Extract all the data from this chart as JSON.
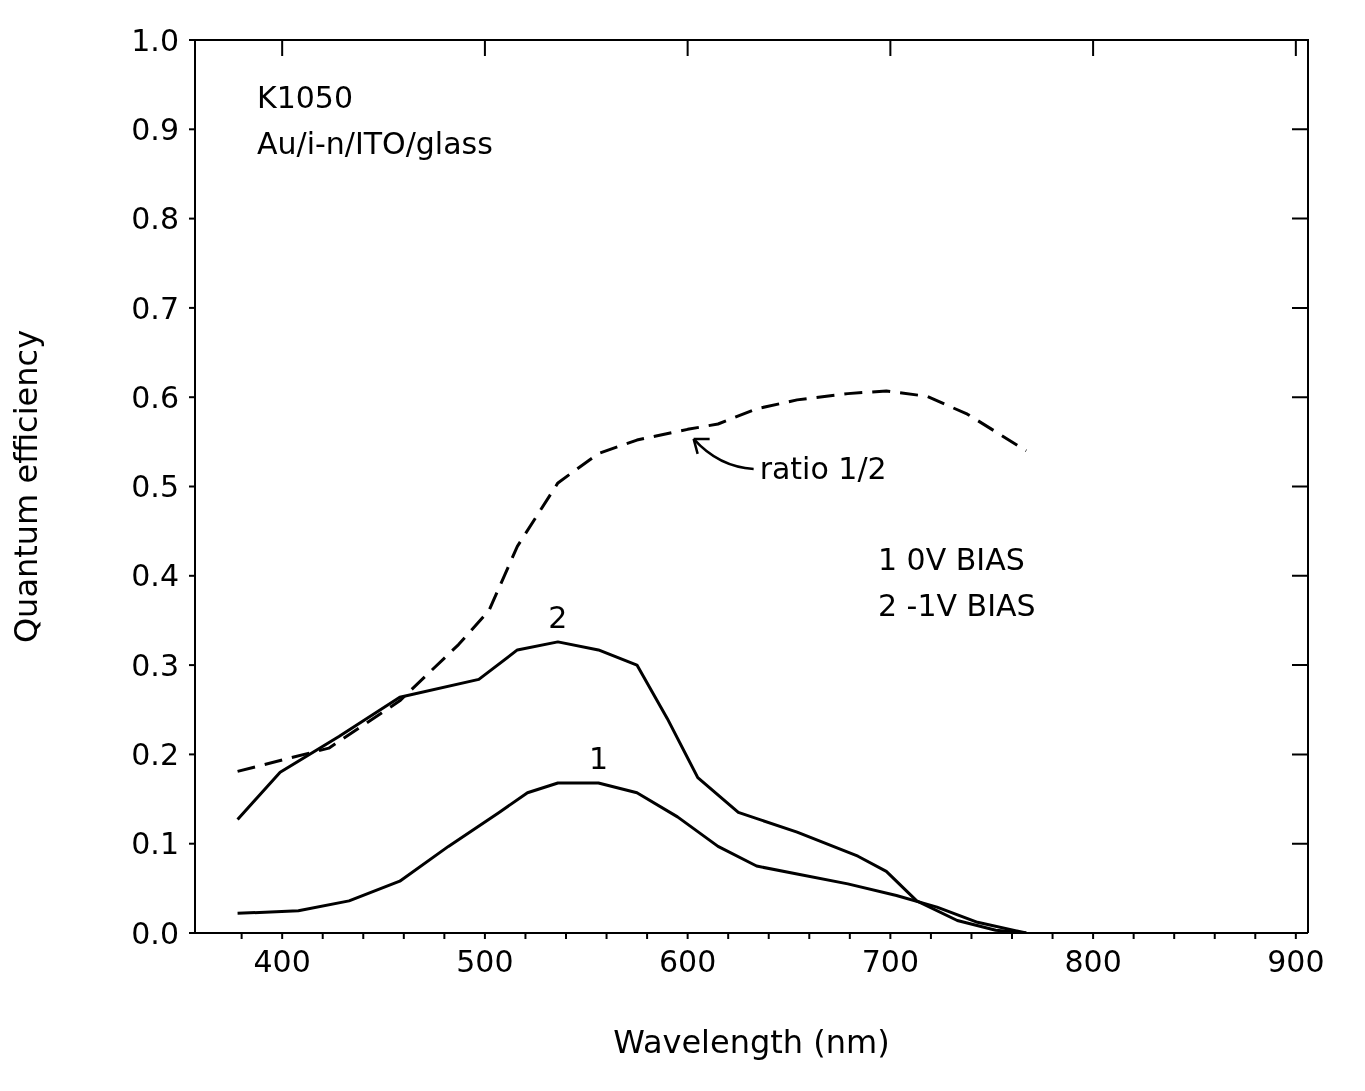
{
  "chart_data": {
    "type": "line",
    "xlabel": "Wavelength (nm)",
    "ylabel": "Quantum efficiency",
    "xlim": [
      357,
      906
    ],
    "ylim": [
      0,
      1
    ],
    "xticks": [
      {
        "value": 380,
        "label": null
      },
      400,
      {
        "value": 420,
        "label": null
      },
      {
        "value": 440,
        "label": null
      },
      {
        "value": 460,
        "label": null
      },
      {
        "value": 480,
        "label": null
      },
      500,
      {
        "value": 520,
        "label": null
      },
      {
        "value": 540,
        "label": null
      },
      {
        "value": 560,
        "label": null
      },
      {
        "value": 580,
        "label": null
      },
      600,
      {
        "value": 620,
        "label": null
      },
      {
        "value": 640,
        "label": null
      },
      {
        "value": 660,
        "label": null
      },
      {
        "value": 680,
        "label": null
      },
      700,
      {
        "value": 720,
        "label": null
      },
      {
        "value": 740,
        "label": null
      },
      {
        "value": 760,
        "label": null
      },
      {
        "value": 780,
        "label": null
      },
      800,
      {
        "value": 820,
        "label": null
      },
      {
        "value": 840,
        "label": null
      },
      {
        "value": 860,
        "label": null
      },
      {
        "value": 880,
        "label": null
      },
      900
    ],
    "yticks": [
      {
        "value": 0,
        "label": "0.0"
      },
      {
        "value": 0.1,
        "label": "0.1"
      },
      {
        "value": 0.2,
        "label": "0.2"
      },
      {
        "value": 0.3,
        "label": "0.3"
      },
      {
        "value": 0.4,
        "label": "0.4"
      },
      {
        "value": 0.5,
        "label": "0.5"
      },
      {
        "value": 0.6,
        "label": "0.6"
      },
      {
        "value": 0.7,
        "label": "0.7"
      },
      {
        "value": 0.8,
        "label": "0.8"
      },
      {
        "value": 0.9,
        "label": "0.9"
      },
      {
        "value": 1,
        "label": "1.0"
      }
    ],
    "series": [
      {
        "color": "#000000",
        "line_style": "solid",
        "x": [
          378,
          408,
          433,
          458,
          482,
          507,
          521,
          536,
          556,
          575,
          595,
          615,
          634,
          654,
          679,
          703,
          723,
          743,
          767
        ],
        "values": [
          0.022,
          0.025,
          0.036,
          0.058,
          0.097,
          0.135,
          0.157,
          0.168,
          0.168,
          0.157,
          0.13,
          0.097,
          0.075,
          0.066,
          0.055,
          0.042,
          0.029,
          0.012,
          0
        ]
      },
      {
        "color": "#000000",
        "line_style": "solid",
        "x": [
          378,
          399,
          428,
          458,
          497,
          516,
          536,
          556,
          575,
          590,
          605,
          625,
          654,
          684,
          698,
          713,
          733,
          752,
          767
        ],
        "values": [
          0.127,
          0.18,
          0.22,
          0.264,
          0.284,
          0.317,
          0.326,
          0.317,
          0.3,
          0.24,
          0.174,
          0.135,
          0.113,
          0.086,
          0.069,
          0.036,
          0.014,
          0.003,
          0
        ]
      },
      {
        "color": "#000000",
        "line_style": "dashed",
        "x": [
          378,
          423,
          458,
          487,
          502,
          516,
          536,
          556,
          575,
          600,
          615,
          634,
          654,
          679,
          698,
          718,
          738,
          767
        ],
        "values": [
          0.181,
          0.207,
          0.26,
          0.323,
          0.361,
          0.433,
          0.504,
          0.537,
          0.552,
          0.564,
          0.57,
          0.587,
          0.597,
          0.604,
          0.607,
          0.601,
          0.581,
          0.54
        ]
      }
    ],
    "annotations": [
      "K1050",
      "Au/i-n/ITO/glass",
      {
        "text": "ratio 1/2",
        "x": 600,
        "y": 0.56
      },
      {
        "text": "1",
        "x": 556,
        "y": 0.168
      },
      {
        "text": "2",
        "x": 536,
        "y": 0.326
      },
      "1 0V BIAS",
      "2 -1V BIAS"
    ]
  }
}
